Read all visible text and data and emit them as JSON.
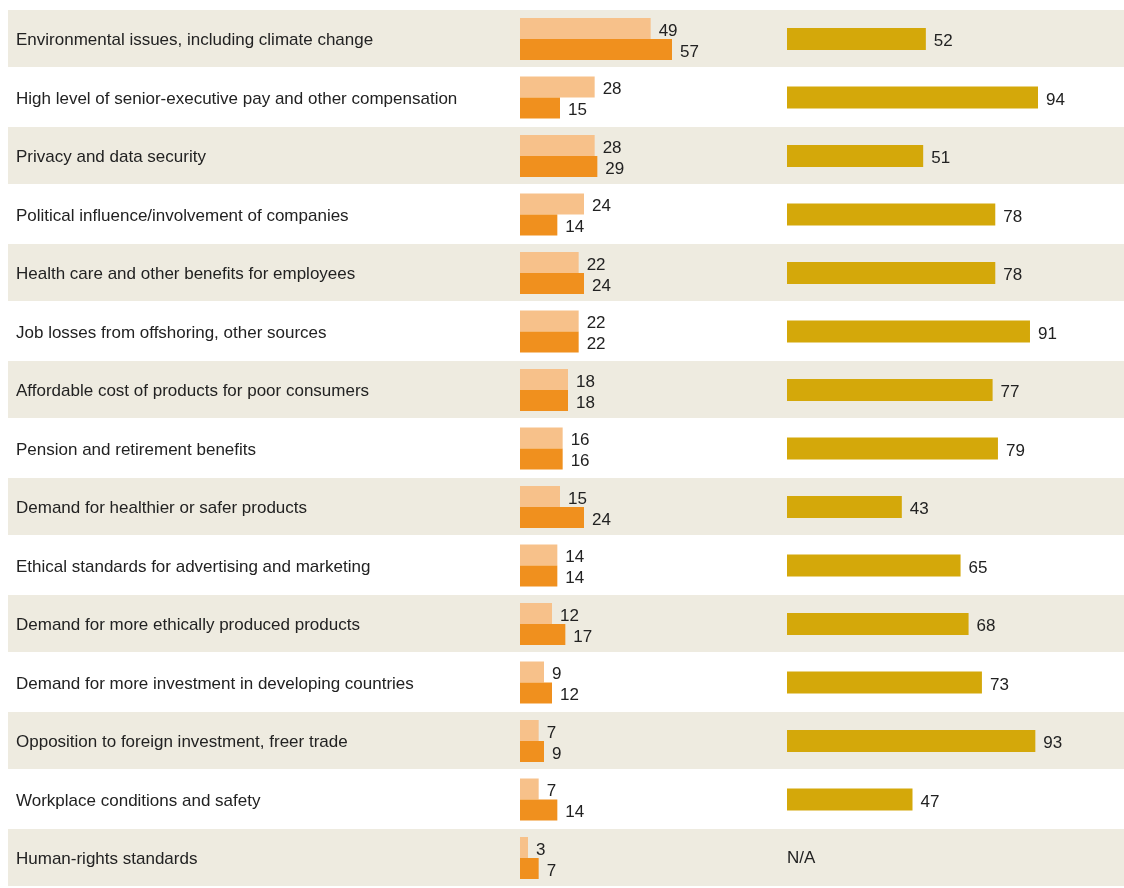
{
  "chart_data": [
    {
      "type": "bar",
      "orientation": "horizontal",
      "categories": [
        "Environmental issues, including climate change",
        "High level of senior-executive pay and other compensation",
        "Privacy and data security",
        "Political influence/involvement of companies",
        "Health care and other benefits for employees",
        "Job losses from offshoring, other sources",
        "Affordable cost of products for poor consumers",
        "Pension and retirement benefits",
        "Demand for healthier or safer products",
        "Ethical standards for advertising and marketing",
        "Demand for more ethically produced products",
        "Demand for more investment in developing countries",
        "Opposition to foreign investment, freer trade",
        "Workplace conditions and safety",
        "Human-rights standards"
      ],
      "series": [
        {
          "color": "#f7c18a",
          "values": [
            49,
            28,
            28,
            24,
            22,
            22,
            18,
            16,
            15,
            14,
            12,
            9,
            7,
            7,
            3
          ]
        },
        {
          "color": "#f0901e",
          "values": [
            57,
            15,
            29,
            14,
            24,
            22,
            18,
            16,
            24,
            14,
            17,
            12,
            9,
            14,
            7
          ]
        }
      ],
      "data_labels": true,
      "tick_labels": "y",
      "legend": false,
      "grid": false
    },
    {
      "type": "bar",
      "orientation": "horizontal",
      "categories": [
        null,
        null,
        null,
        null,
        null,
        null,
        null,
        null,
        null,
        null,
        null,
        null,
        null,
        null,
        null
      ],
      "series": [
        {
          "color": "#d4a80a",
          "values": [
            52,
            94,
            51,
            78,
            78,
            91,
            77,
            79,
            43,
            65,
            68,
            73,
            93,
            47,
            null
          ],
          "value_labels": [
            "52",
            "94",
            "51",
            "78",
            "78",
            "91",
            "77",
            "79",
            "43",
            "65",
            "68",
            "73",
            "93",
            "47",
            "N/A"
          ]
        }
      ],
      "tick_labels": false,
      "legend": false,
      "grid": false
    }
  ]
}
